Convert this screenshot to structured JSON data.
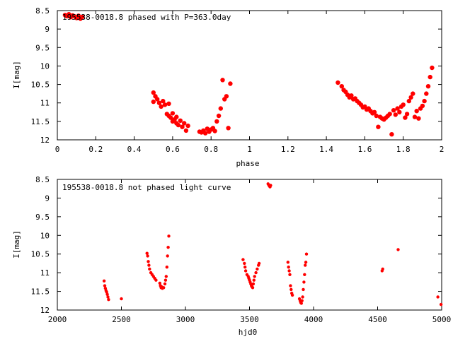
{
  "chart_data": [
    {
      "type": "scatter",
      "title": "195538-0018.8 phased with P=363.0day",
      "xlabel": "phase",
      "ylabel": "I[mag]",
      "xlim": [
        0,
        2
      ],
      "ylim": [
        12,
        8.5
      ],
      "y_axis_inverted": true,
      "xticks": [
        "0",
        "0.2",
        "0.4",
        "0.6",
        "0.8",
        "1",
        "1.2",
        "1.4",
        "1.6",
        "1.8",
        "2"
      ],
      "yticks": [
        "8.5",
        "9",
        "9.5",
        "10",
        "10.5",
        "11",
        "11.5",
        "12"
      ],
      "marker_color": "#ff0000",
      "grid": false,
      "series": [
        {
          "points": [
            [
              0.04,
              8.62
            ],
            [
              0.05,
              8.65
            ],
            [
              0.06,
              8.6
            ],
            [
              0.07,
              8.68
            ],
            [
              0.08,
              8.63
            ],
            [
              0.09,
              8.66
            ],
            [
              0.1,
              8.7
            ],
            [
              0.11,
              8.64
            ],
            [
              0.12,
              8.72
            ],
            [
              0.13,
              8.67
            ],
            [
              0.5,
              10.72
            ],
            [
              0.5,
              10.97
            ],
            [
              0.51,
              10.82
            ],
            [
              0.52,
              10.9
            ],
            [
              0.53,
              11.0
            ],
            [
              0.54,
              11.1
            ],
            [
              0.55,
              10.95
            ],
            [
              0.56,
              11.05
            ],
            [
              0.57,
              11.3
            ],
            [
              0.58,
              11.02
            ],
            [
              0.58,
              11.35
            ],
            [
              0.59,
              11.4
            ],
            [
              0.6,
              11.28
            ],
            [
              0.6,
              11.5
            ],
            [
              0.61,
              11.45
            ],
            [
              0.62,
              11.38
            ],
            [
              0.62,
              11.55
            ],
            [
              0.63,
              11.6
            ],
            [
              0.64,
              11.48
            ],
            [
              0.65,
              11.65
            ],
            [
              0.66,
              11.55
            ],
            [
              0.67,
              11.75
            ],
            [
              0.68,
              11.62
            ],
            [
              0.74,
              11.78
            ],
            [
              0.75,
              11.8
            ],
            [
              0.76,
              11.75
            ],
            [
              0.77,
              11.82
            ],
            [
              0.78,
              11.7
            ],
            [
              0.79,
              11.78
            ],
            [
              0.8,
              11.72
            ],
            [
              0.81,
              11.68
            ],
            [
              0.82,
              11.76
            ],
            [
              0.83,
              11.5
            ],
            [
              0.84,
              11.35
            ],
            [
              0.85,
              11.15
            ],
            [
              0.86,
              10.38
            ],
            [
              0.87,
              10.9
            ],
            [
              0.88,
              10.82
            ],
            [
              0.89,
              11.68
            ],
            [
              0.9,
              10.48
            ],
            [
              1.46,
              10.45
            ],
            [
              1.48,
              10.55
            ],
            [
              1.49,
              10.65
            ],
            [
              1.5,
              10.7
            ],
            [
              1.51,
              10.78
            ],
            [
              1.52,
              10.85
            ],
            [
              1.53,
              10.8
            ],
            [
              1.54,
              10.9
            ],
            [
              1.55,
              10.88
            ],
            [
              1.56,
              10.95
            ],
            [
              1.57,
              11.0
            ],
            [
              1.58,
              11.05
            ],
            [
              1.59,
              11.12
            ],
            [
              1.6,
              11.1
            ],
            [
              1.61,
              11.18
            ],
            [
              1.62,
              11.15
            ],
            [
              1.63,
              11.22
            ],
            [
              1.64,
              11.28
            ],
            [
              1.65,
              11.25
            ],
            [
              1.66,
              11.35
            ],
            [
              1.67,
              11.65
            ],
            [
              1.68,
              11.38
            ],
            [
              1.69,
              11.42
            ],
            [
              1.7,
              11.45
            ],
            [
              1.71,
              11.4
            ],
            [
              1.72,
              11.35
            ],
            [
              1.73,
              11.3
            ],
            [
              1.74,
              11.85
            ],
            [
              1.75,
              11.2
            ],
            [
              1.76,
              11.32
            ],
            [
              1.77,
              11.15
            ],
            [
              1.78,
              11.25
            ],
            [
              1.79,
              11.1
            ],
            [
              1.8,
              11.05
            ],
            [
              1.81,
              11.4
            ],
            [
              1.82,
              11.3
            ],
            [
              1.83,
              10.95
            ],
            [
              1.84,
              10.85
            ],
            [
              1.85,
              10.75
            ],
            [
              1.86,
              11.38
            ],
            [
              1.87,
              11.22
            ],
            [
              1.88,
              11.42
            ],
            [
              1.89,
              11.15
            ],
            [
              1.9,
              11.08
            ],
            [
              1.91,
              10.95
            ],
            [
              1.92,
              10.75
            ],
            [
              1.93,
              10.55
            ],
            [
              1.94,
              10.3
            ],
            [
              1.95,
              10.05
            ]
          ]
        }
      ]
    },
    {
      "type": "scatter",
      "title": "195538-0018.8 not phased light curve",
      "xlabel": "hjd0",
      "ylabel": "I[mag]",
      "xlim": [
        2000,
        5000
      ],
      "ylim": [
        12,
        8.5
      ],
      "y_axis_inverted": true,
      "xticks": [
        "2000",
        "2500",
        "3000",
        "3500",
        "4000",
        "4500",
        "5000"
      ],
      "yticks": [
        "8.5",
        "9",
        "9.5",
        "10",
        "10.5",
        "11",
        "11.5",
        "12"
      ],
      "marker_color": "#ff0000",
      "grid": false,
      "series": [
        {
          "points": [
            [
              2365,
              11.22
            ],
            [
              2370,
              11.35
            ],
            [
              2375,
              11.42
            ],
            [
              2380,
              11.48
            ],
            [
              2385,
              11.52
            ],
            [
              2390,
              11.58
            ],
            [
              2395,
              11.65
            ],
            [
              2400,
              11.72
            ],
            [
              2500,
              11.7
            ],
            [
              2700,
              10.48
            ],
            [
              2705,
              10.55
            ],
            [
              2710,
              10.7
            ],
            [
              2715,
              10.8
            ],
            [
              2720,
              10.9
            ],
            [
              2730,
              11.0
            ],
            [
              2740,
              11.05
            ],
            [
              2750,
              11.1
            ],
            [
              2760,
              11.15
            ],
            [
              2770,
              11.2
            ],
            [
              2800,
              11.28
            ],
            [
              2805,
              11.35
            ],
            [
              2810,
              11.4
            ],
            [
              2815,
              11.38
            ],
            [
              2820,
              11.42
            ],
            [
              2830,
              11.4
            ],
            [
              2840,
              11.3
            ],
            [
              2845,
              11.2
            ],
            [
              2850,
              11.1
            ],
            [
              2855,
              10.85
            ],
            [
              2860,
              10.55
            ],
            [
              2865,
              10.32
            ],
            [
              2870,
              10.02
            ],
            [
              3450,
              10.65
            ],
            [
              3460,
              10.75
            ],
            [
              3465,
              10.85
            ],
            [
              3470,
              10.95
            ],
            [
              3480,
              11.05
            ],
            [
              3490,
              11.1
            ],
            [
              3495,
              11.15
            ],
            [
              3500,
              11.2
            ],
            [
              3505,
              11.25
            ],
            [
              3510,
              11.3
            ],
            [
              3515,
              11.35
            ],
            [
              3520,
              11.38
            ],
            [
              3525,
              11.4
            ],
            [
              3530,
              11.3
            ],
            [
              3535,
              11.2
            ],
            [
              3540,
              11.1
            ],
            [
              3550,
              11.0
            ],
            [
              3560,
              10.9
            ],
            [
              3570,
              10.8
            ],
            [
              3575,
              10.75
            ],
            [
              3645,
              8.62
            ],
            [
              3650,
              8.65
            ],
            [
              3655,
              8.68
            ],
            [
              3660,
              8.7
            ],
            [
              3665,
              8.66
            ],
            [
              3800,
              10.72
            ],
            [
              3805,
              10.85
            ],
            [
              3810,
              10.95
            ],
            [
              3815,
              11.05
            ],
            [
              3820,
              11.35
            ],
            [
              3825,
              11.45
            ],
            [
              3830,
              11.55
            ],
            [
              3835,
              11.6
            ],
            [
              3890,
              11.7
            ],
            [
              3895,
              11.75
            ],
            [
              3900,
              11.8
            ],
            [
              3905,
              11.82
            ],
            [
              3910,
              11.75
            ],
            [
              3915,
              11.65
            ],
            [
              3920,
              11.45
            ],
            [
              3925,
              11.25
            ],
            [
              3930,
              11.05
            ],
            [
              3935,
              10.8
            ],
            [
              3940,
              10.72
            ],
            [
              3945,
              10.5
            ],
            [
              4535,
              10.95
            ],
            [
              4540,
              10.9
            ],
            [
              4660,
              10.38
            ],
            [
              4970,
              11.65
            ],
            [
              4995,
              11.85
            ]
          ]
        }
      ]
    }
  ]
}
